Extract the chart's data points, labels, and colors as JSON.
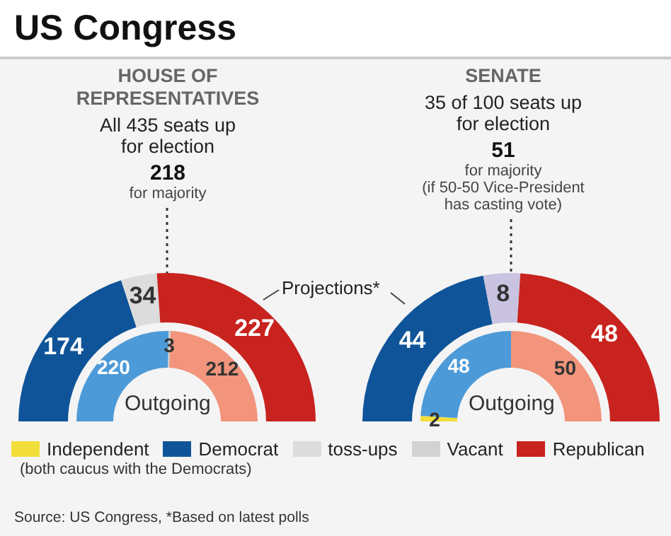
{
  "chart_data": [
    {
      "type": "other",
      "title": "US Congress",
      "annotations": [
        "(both caucus with the Democrats)",
        "Source: US Congress, *Based on latest polls"
      ]
    },
    {
      "type": "donut",
      "title": "HOUSE OF REPRESENTATIVES",
      "subtitle": "All 435 seats up for election",
      "categories": [
        "Independent",
        "Democrat",
        "toss-ups",
        "Vacant",
        "Republican"
      ],
      "series": [
        {
          "name": "Projections*",
          "values": [
            null,
            174,
            34,
            null,
            227
          ],
          "colors": [
            "#f2de3a",
            "#0f5499",
            "#dcdcdc",
            "#d2d2d2",
            "#c8231e"
          ]
        },
        {
          "name": "Outgoing",
          "values": [
            null,
            220,
            null,
            3,
            212
          ],
          "colors": [
            "#f2de3a",
            "#4d9ad8",
            "#dcdcdc",
            "#d2d2d2",
            "#f2957c"
          ]
        }
      ],
      "annotations": [
        "218",
        "for majority"
      ],
      "data_labels": true,
      "legend": "bottom"
    },
    {
      "type": "donut",
      "title": "SENATE",
      "subtitle": "35 of 100 seats up for election",
      "categories": [
        null,
        null,
        null,
        null,
        null
      ],
      "series": [
        {
          "values": [
            null,
            44,
            8,
            null,
            48
          ],
          "colors": [
            "#f2de3a",
            "#0f5499",
            "#c9c2e0",
            "#d2d2d2",
            "#c8231e"
          ]
        },
        {
          "name": "Outgoing",
          "values": [
            2,
            48,
            null,
            null,
            50
          ],
          "colors": [
            "#f2de3a",
            "#4d9ad8",
            "#c9c2e0",
            "#d2d2d2",
            "#f2957c"
          ]
        }
      ],
      "annotations": [
        "51",
        "for majority",
        "(if 50-50 Vice-President has casting vote)"
      ],
      "data_labels": true
    }
  ]
}
